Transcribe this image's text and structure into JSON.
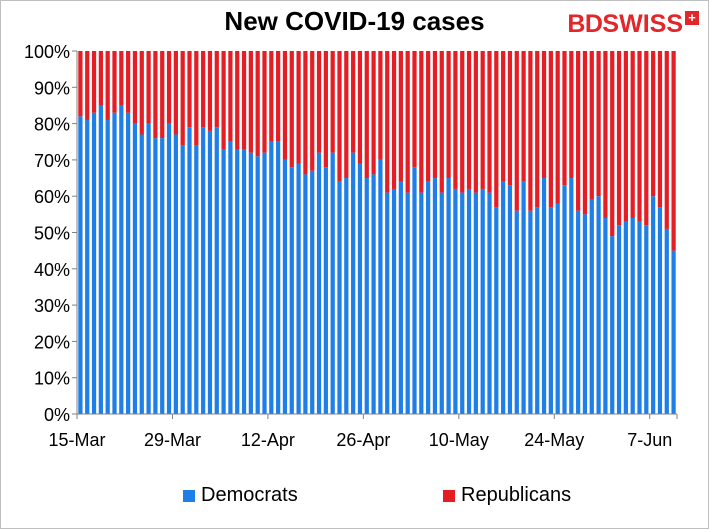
{
  "title": "New COVID-19 cases",
  "logo": {
    "text_bd": "BD",
    "text_swiss": "SWISS",
    "plus": "+"
  },
  "colors": {
    "democrats": "#1f7fe8",
    "republicans": "#e51e25",
    "gridline": "#d9d9d9"
  },
  "chart_data": {
    "type": "bar",
    "stacked": true,
    "percent": true,
    "title": "New COVID-19 cases",
    "ylim": [
      0,
      1
    ],
    "yticks": [
      "0%",
      "10%",
      "20%",
      "30%",
      "40%",
      "50%",
      "60%",
      "70%",
      "80%",
      "90%",
      "100%"
    ],
    "xtick_labels": [
      "15-Mar",
      "29-Mar",
      "12-Apr",
      "26-Apr",
      "10-May",
      "24-May",
      "7-Jun"
    ],
    "x_start": "15-Mar",
    "x_end": "11-Jun",
    "legend": "bottom",
    "series": [
      {
        "name": "Democrats",
        "values": [
          0.82,
          0.81,
          0.83,
          0.85,
          0.81,
          0.83,
          0.85,
          0.83,
          0.8,
          0.77,
          0.8,
          0.76,
          0.76,
          0.8,
          0.77,
          0.74,
          0.79,
          0.74,
          0.79,
          0.78,
          0.79,
          0.73,
          0.75,
          0.73,
          0.73,
          0.72,
          0.71,
          0.72,
          0.75,
          0.75,
          0.7,
          0.68,
          0.69,
          0.66,
          0.67,
          0.72,
          0.68,
          0.72,
          0.64,
          0.65,
          0.72,
          0.69,
          0.65,
          0.66,
          0.7,
          0.61,
          0.62,
          0.64,
          0.61,
          0.68,
          0.61,
          0.64,
          0.65,
          0.61,
          0.65,
          0.62,
          0.61,
          0.62,
          0.61,
          0.62,
          0.61,
          0.57,
          0.64,
          0.63,
          0.56,
          0.64,
          0.56,
          0.57,
          0.65,
          0.57,
          0.58,
          0.63,
          0.65,
          0.56,
          0.55,
          0.59,
          0.6,
          0.54,
          0.49,
          0.52,
          0.53,
          0.54,
          0.53,
          0.52,
          0.6,
          0.57,
          0.51,
          0.45
        ]
      },
      {
        "name": "Republicans",
        "values": [
          0.18,
          0.19,
          0.17,
          0.15,
          0.19,
          0.17,
          0.15,
          0.17,
          0.2,
          0.23,
          0.2,
          0.24,
          0.24,
          0.2,
          0.23,
          0.26,
          0.21,
          0.26,
          0.21,
          0.22,
          0.21,
          0.27,
          0.25,
          0.27,
          0.27,
          0.28,
          0.29,
          0.28,
          0.25,
          0.25,
          0.3,
          0.32,
          0.31,
          0.34,
          0.33,
          0.28,
          0.32,
          0.28,
          0.36,
          0.35,
          0.28,
          0.31,
          0.35,
          0.34,
          0.3,
          0.39,
          0.38,
          0.36,
          0.39,
          0.32,
          0.39,
          0.36,
          0.35,
          0.39,
          0.35,
          0.38,
          0.39,
          0.38,
          0.39,
          0.38,
          0.39,
          0.43,
          0.36,
          0.37,
          0.44,
          0.36,
          0.44,
          0.43,
          0.35,
          0.43,
          0.42,
          0.37,
          0.35,
          0.44,
          0.45,
          0.41,
          0.4,
          0.46,
          0.51,
          0.48,
          0.47,
          0.46,
          0.47,
          0.48,
          0.4,
          0.43,
          0.49,
          0.55
        ]
      }
    ]
  }
}
